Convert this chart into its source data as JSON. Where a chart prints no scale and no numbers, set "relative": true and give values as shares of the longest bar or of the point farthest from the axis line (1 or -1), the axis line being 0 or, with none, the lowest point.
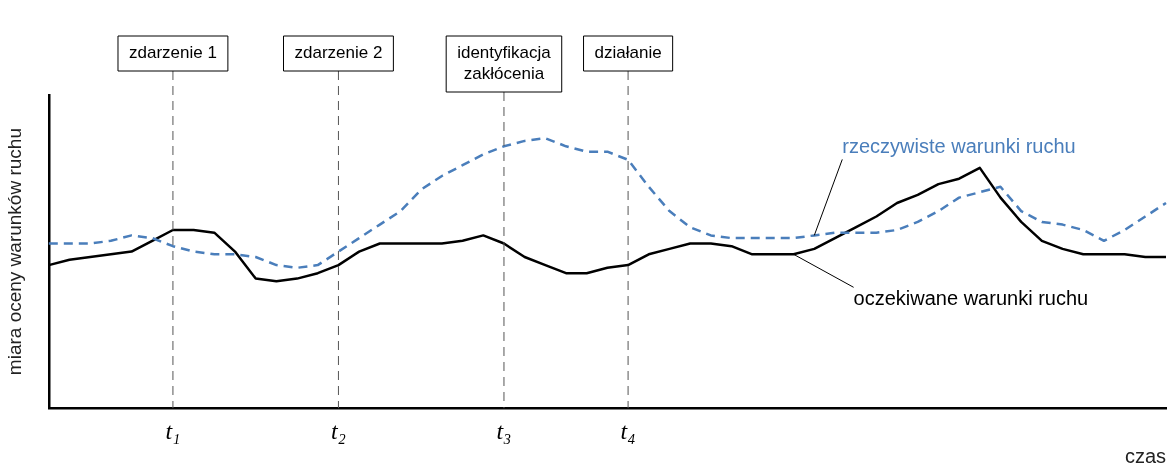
{
  "chart_data": {
    "type": "line",
    "relative": true,
    "xlabel": "czas",
    "ylabel": "miara oceny warunków ruchu",
    "categories": [
      null,
      null,
      null,
      null,
      null,
      null,
      "t₁",
      null,
      null,
      null,
      null,
      null,
      null,
      null,
      "t₂",
      null,
      null,
      null,
      null,
      null,
      null,
      null,
      "t₃",
      null,
      null,
      null,
      null,
      null,
      "t₄",
      null,
      null,
      null,
      null,
      null,
      null,
      null,
      null,
      null,
      null,
      null,
      null,
      null,
      null,
      null,
      null,
      null,
      null,
      null,
      null,
      null,
      null,
      null,
      null,
      null,
      null
    ],
    "series": [
      {
        "name": "rzeczywiste warunki ruchu",
        "color": "#4a7ebb",
        "line_style": "dashed",
        "values": [
          0.61,
          0.61,
          0.61,
          0.62,
          0.64,
          0.63,
          0.6,
          0.58,
          0.57,
          0.57,
          0.56,
          0.53,
          0.52,
          0.53,
          0.58,
          0.63,
          0.68,
          0.73,
          0.81,
          0.86,
          0.9,
          0.94,
          0.97,
          0.99,
          1,
          0.97,
          0.95,
          0.95,
          0.92,
          0.82,
          0.73,
          0.67,
          0.64,
          0.63,
          0.63,
          0.63,
          0.63,
          0.64,
          0.65,
          0.65,
          0.65,
          0.66,
          0.69,
          0.73,
          0.78,
          0.8,
          0.82,
          0.73,
          0.69,
          0.68,
          0.66,
          0.62,
          0.66,
          0.71,
          0.76
        ]
      },
      {
        "name": "oczekiwane warunki ruchu",
        "color": "#000000",
        "line_style": "solid",
        "values": [
          0.53,
          0.55,
          0.56,
          0.57,
          0.58,
          0.62,
          0.66,
          0.66,
          0.65,
          0.58,
          0.48,
          0.47,
          0.48,
          0.5,
          0.53,
          0.58,
          0.61,
          0.61,
          0.61,
          0.61,
          0.62,
          0.64,
          0.61,
          0.56,
          0.53,
          0.5,
          0.5,
          0.52,
          0.53,
          0.57,
          0.59,
          0.61,
          0.61,
          0.6,
          0.57,
          0.57,
          0.57,
          0.59,
          0.63,
          0.67,
          0.71,
          0.76,
          0.79,
          0.83,
          0.85,
          0.89,
          0.78,
          0.69,
          0.62,
          0.59,
          0.57,
          0.57,
          0.57,
          0.56,
          0.56
        ]
      }
    ],
    "ref_lines": [
      {
        "axis": "x",
        "value": "t₁",
        "label": "zdarzenie 1"
      },
      {
        "axis": "x",
        "value": "t₂",
        "label": "zdarzenie 2"
      },
      {
        "axis": "x",
        "value": "t₃",
        "label": "identyfikacja zakłócenia"
      },
      {
        "axis": "x",
        "value": "t₄",
        "label": "działanie"
      }
    ],
    "legend": false,
    "grid": false,
    "marker": "none"
  }
}
